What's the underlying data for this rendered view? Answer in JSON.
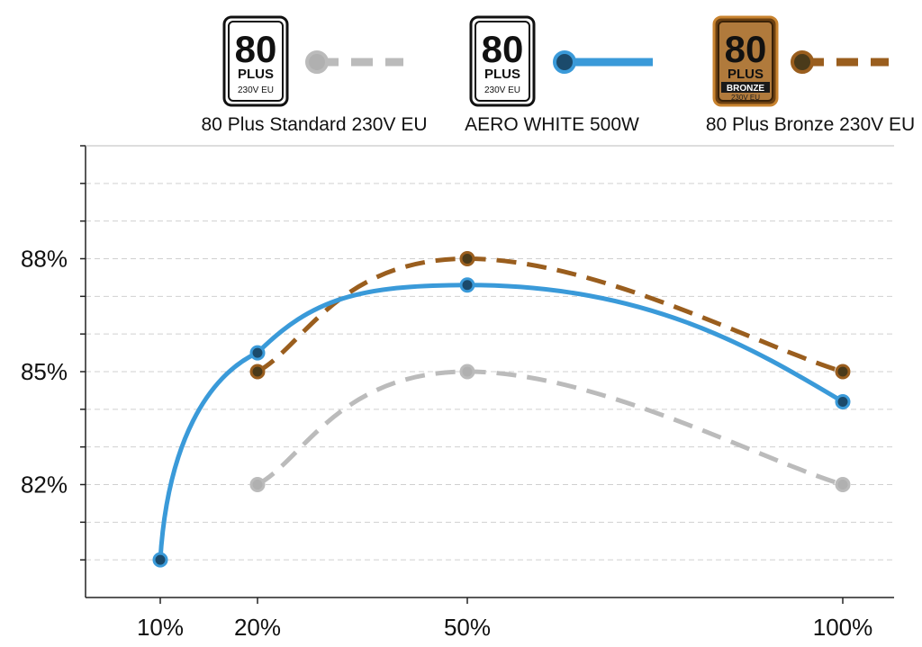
{
  "chart_data": {
    "type": "line",
    "title": "",
    "xlabel": "",
    "ylabel": "",
    "x_ticks": [
      "10%",
      "20%",
      "50%",
      "100%"
    ],
    "y_ticks": [
      "82%",
      "85%",
      "88%"
    ],
    "ylim": [
      79,
      91
    ],
    "grid": true,
    "legend_position": "top",
    "series": [
      {
        "name": "80 Plus Standard 230V EU",
        "color": "#bbbbbb",
        "dot_fill": "#b0b0b0",
        "dash": true,
        "x": [
          20,
          50,
          100
        ],
        "y": [
          82,
          85,
          82
        ],
        "badge": {
          "number": "80",
          "plus": "PLUS",
          "sub": "230V EU",
          "tier": "",
          "style": "standard"
        }
      },
      {
        "name": "AERO WHITE 500W",
        "color": "#3a9ad9",
        "dot_fill": "#1b4a6b",
        "dash": false,
        "x": [
          10,
          20,
          50,
          100
        ],
        "y": [
          80,
          85.5,
          87.3,
          84.2
        ],
        "badge": {
          "number": "80",
          "plus": "PLUS",
          "sub": "230V EU",
          "tier": "",
          "style": "standard"
        }
      },
      {
        "name": "80 Plus Bronze 230V EU",
        "color": "#9a5e1e",
        "dot_fill": "#4a3a1a",
        "dash": true,
        "x": [
          20,
          50,
          100
        ],
        "y": [
          85,
          88,
          85
        ],
        "badge": {
          "number": "80",
          "plus": "PLUS",
          "sub": "230V EU",
          "tier": "BRONZE",
          "style": "bronze"
        }
      }
    ]
  }
}
